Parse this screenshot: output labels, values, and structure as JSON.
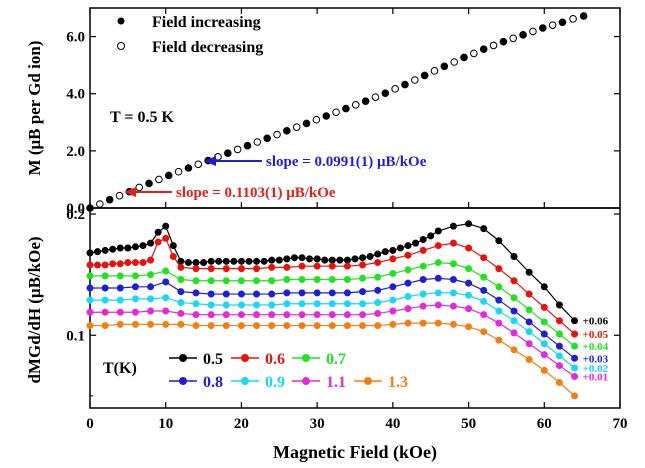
{
  "chart_data": [
    {
      "type": "scatter",
      "panel": "top",
      "ylabel": "M (μB per Gd ion)",
      "xlim": [
        0,
        70
      ],
      "ylim": [
        0,
        7
      ],
      "yticks": [
        "0.0",
        "2.0",
        "4.0",
        "6.0"
      ],
      "legend_position": "top-left",
      "legend": [
        "Field increasing",
        "Field decreasing"
      ],
      "annotation": "T = 0.5 K",
      "slopes": [
        {
          "text": "slope = 0.0991(1) μB/kOe",
          "color": "#1f1fd0"
        },
        {
          "text": "slope = 0.1103(1) μB/kOe",
          "color": "#e0201a"
        }
      ],
      "series": [
        {
          "name": "Field increasing",
          "marker": "filled",
          "x": [
            0,
            2.6,
            5.2,
            7.8,
            10.4,
            13,
            15.6,
            18.2,
            20.8,
            23.4,
            26,
            28.6,
            31.2,
            33.8,
            36.4,
            39,
            41.6,
            44.2,
            46.8,
            49.4,
            52,
            54.6,
            57.2,
            59.8,
            62.4,
            65.2
          ],
          "y": [
            0,
            0.29,
            0.57,
            0.86,
            1.14,
            1.4,
            1.66,
            1.92,
            2.18,
            2.44,
            2.7,
            2.96,
            3.22,
            3.48,
            3.74,
            4.02,
            4.32,
            4.64,
            4.96,
            5.27,
            5.56,
            5.82,
            6.06,
            6.3,
            6.5,
            6.72
          ]
        },
        {
          "name": "Field decreasing",
          "marker": "open",
          "x": [
            1.3,
            3.9,
            6.5,
            9.1,
            11.7,
            14.3,
            16.9,
            19.5,
            22.1,
            24.7,
            27.3,
            29.9,
            32.5,
            35.1,
            37.7,
            40.3,
            42.9,
            45.5,
            48.1,
            50.7,
            53.3,
            55.9,
            58.5,
            61.1,
            63.8
          ],
          "y": [
            0.14,
            0.43,
            0.72,
            1.0,
            1.27,
            1.53,
            1.79,
            2.05,
            2.31,
            2.57,
            2.83,
            3.09,
            3.35,
            3.61,
            3.88,
            4.17,
            4.48,
            4.8,
            5.11,
            5.41,
            5.69,
            5.94,
            6.18,
            6.4,
            6.62
          ]
        }
      ]
    },
    {
      "type": "line",
      "panel": "bottom",
      "xlabel": "Magnetic Field (kOe)",
      "ylabel": "dMGd/dH (μB/kOe)",
      "xlim": [
        0,
        70
      ],
      "ylim": [
        0.04,
        0.205
      ],
      "xticks": [
        "0",
        "10",
        "20",
        "30",
        "40",
        "50",
        "60",
        "70"
      ],
      "yticks": [
        "0.1",
        "0.2"
      ],
      "legend_title": "T(K)",
      "series": [
        {
          "name": "0.5",
          "color": "#000000",
          "offset": "+0.06",
          "x": [
            0,
            1,
            2,
            3,
            4,
            5,
            6,
            7,
            8,
            9,
            10,
            11,
            12,
            13,
            14,
            15,
            16,
            17,
            18,
            19,
            20,
            21,
            22,
            23,
            24,
            25,
            26,
            27,
            28,
            29,
            30,
            31,
            32,
            33,
            34,
            35,
            36,
            37,
            38,
            39,
            40,
            41,
            42,
            43,
            44,
            45,
            46,
            48,
            50,
            52,
            54,
            56,
            58,
            60,
            62,
            64
          ],
          "y": [
            0.168,
            0.169,
            0.17,
            0.171,
            0.172,
            0.172,
            0.173,
            0.174,
            0.176,
            0.185,
            0.19,
            0.174,
            0.161,
            0.16,
            0.16,
            0.16,
            0.161,
            0.161,
            0.161,
            0.161,
            0.161,
            0.161,
            0.161,
            0.161,
            0.162,
            0.162,
            0.163,
            0.164,
            0.164,
            0.163,
            0.163,
            0.162,
            0.162,
            0.162,
            0.162,
            0.163,
            0.164,
            0.165,
            0.167,
            0.169,
            0.17,
            0.172,
            0.174,
            0.176,
            0.179,
            0.182,
            0.186,
            0.19,
            0.192,
            0.188,
            0.178,
            0.165,
            0.152,
            0.14,
            0.125,
            0.112
          ]
        },
        {
          "name": "0.6",
          "color": "#e3140e",
          "offset": "+0.05",
          "x": [
            0,
            1,
            2,
            3,
            4,
            5,
            6,
            7,
            8,
            9,
            10,
            11,
            12,
            14,
            16,
            18,
            20,
            22,
            24,
            26,
            28,
            30,
            32,
            34,
            36,
            38,
            40,
            42,
            44,
            46,
            48,
            50,
            52,
            54,
            56,
            58,
            60,
            62,
            64
          ],
          "y": [
            0.158,
            0.158,
            0.158,
            0.159,
            0.159,
            0.16,
            0.16,
            0.16,
            0.162,
            0.177,
            0.18,
            0.165,
            0.156,
            0.155,
            0.155,
            0.155,
            0.155,
            0.155,
            0.156,
            0.156,
            0.157,
            0.157,
            0.157,
            0.157,
            0.158,
            0.16,
            0.163,
            0.166,
            0.17,
            0.174,
            0.176,
            0.172,
            0.164,
            0.155,
            0.145,
            0.134,
            0.123,
            0.112,
            0.101
          ]
        },
        {
          "name": "0.7",
          "color": "#22e022",
          "offset": "+0.04",
          "x": [
            0,
            2,
            4,
            6,
            8,
            10,
            12,
            14,
            16,
            18,
            20,
            22,
            24,
            26,
            28,
            30,
            32,
            34,
            36,
            38,
            40,
            42,
            44,
            46,
            48,
            50,
            52,
            54,
            56,
            58,
            60,
            62,
            64
          ],
          "y": [
            0.149,
            0.149,
            0.149,
            0.149,
            0.15,
            0.153,
            0.146,
            0.145,
            0.145,
            0.145,
            0.145,
            0.145,
            0.145,
            0.146,
            0.146,
            0.146,
            0.146,
            0.146,
            0.147,
            0.148,
            0.151,
            0.154,
            0.157,
            0.16,
            0.159,
            0.155,
            0.148,
            0.14,
            0.131,
            0.121,
            0.111,
            0.101,
            0.091
          ]
        },
        {
          "name": "0.8",
          "color": "#1f1fd0",
          "offset": "+0.03",
          "x": [
            0,
            2,
            4,
            6,
            8,
            10,
            12,
            14,
            16,
            18,
            20,
            22,
            24,
            26,
            28,
            30,
            32,
            34,
            36,
            38,
            40,
            42,
            44,
            46,
            48,
            50,
            52,
            54,
            56,
            58,
            60,
            62,
            64
          ],
          "y": [
            0.139,
            0.139,
            0.139,
            0.14,
            0.14,
            0.144,
            0.136,
            0.135,
            0.134,
            0.134,
            0.134,
            0.134,
            0.134,
            0.135,
            0.135,
            0.135,
            0.135,
            0.135,
            0.136,
            0.137,
            0.14,
            0.143,
            0.146,
            0.147,
            0.146,
            0.143,
            0.137,
            0.129,
            0.12,
            0.111,
            0.101,
            0.091,
            0.081
          ]
        },
        {
          "name": "0.9",
          "color": "#1ad8ee",
          "offset": "+0.02",
          "x": [
            0,
            2,
            4,
            6,
            8,
            10,
            12,
            14,
            16,
            18,
            20,
            22,
            24,
            26,
            28,
            30,
            32,
            34,
            36,
            38,
            40,
            42,
            44,
            46,
            48,
            50,
            52,
            54,
            56,
            58,
            60,
            62,
            64
          ],
          "y": [
            0.129,
            0.129,
            0.129,
            0.13,
            0.13,
            0.131,
            0.127,
            0.126,
            0.125,
            0.125,
            0.125,
            0.125,
            0.125,
            0.126,
            0.126,
            0.126,
            0.126,
            0.126,
            0.126,
            0.127,
            0.129,
            0.132,
            0.134,
            0.135,
            0.135,
            0.133,
            0.128,
            0.12,
            0.112,
            0.103,
            0.093,
            0.083,
            0.073
          ]
        },
        {
          "name": "1.1",
          "color": "#e02bd8",
          "offset": "+0.01",
          "x": [
            0,
            2,
            4,
            6,
            8,
            10,
            12,
            14,
            16,
            18,
            20,
            22,
            24,
            26,
            28,
            30,
            32,
            34,
            36,
            38,
            40,
            42,
            44,
            46,
            48,
            50,
            52,
            54,
            56,
            58,
            60,
            62,
            64
          ],
          "y": [
            0.119,
            0.119,
            0.119,
            0.119,
            0.12,
            0.12,
            0.118,
            0.117,
            0.117,
            0.117,
            0.117,
            0.117,
            0.117,
            0.117,
            0.117,
            0.117,
            0.117,
            0.117,
            0.117,
            0.118,
            0.12,
            0.122,
            0.124,
            0.125,
            0.124,
            0.122,
            0.117,
            0.11,
            0.102,
            0.093,
            0.084,
            0.075,
            0.066
          ]
        },
        {
          "name": "1.3",
          "color": "#f07f14",
          "offset": "",
          "x": [
            0,
            2,
            4,
            6,
            8,
            10,
            12,
            14,
            16,
            18,
            20,
            22,
            24,
            26,
            28,
            30,
            32,
            34,
            36,
            38,
            40,
            42,
            44,
            46,
            48,
            50,
            52,
            54,
            56,
            58,
            60,
            62,
            64
          ],
          "y": [
            0.108,
            0.108,
            0.109,
            0.109,
            0.109,
            0.109,
            0.109,
            0.108,
            0.108,
            0.108,
            0.108,
            0.108,
            0.108,
            0.108,
            0.108,
            0.108,
            0.108,
            0.108,
            0.108,
            0.108,
            0.109,
            0.11,
            0.11,
            0.11,
            0.109,
            0.107,
            0.103,
            0.096,
            0.088,
            0.08,
            0.071,
            0.061,
            0.05
          ]
        }
      ]
    }
  ]
}
